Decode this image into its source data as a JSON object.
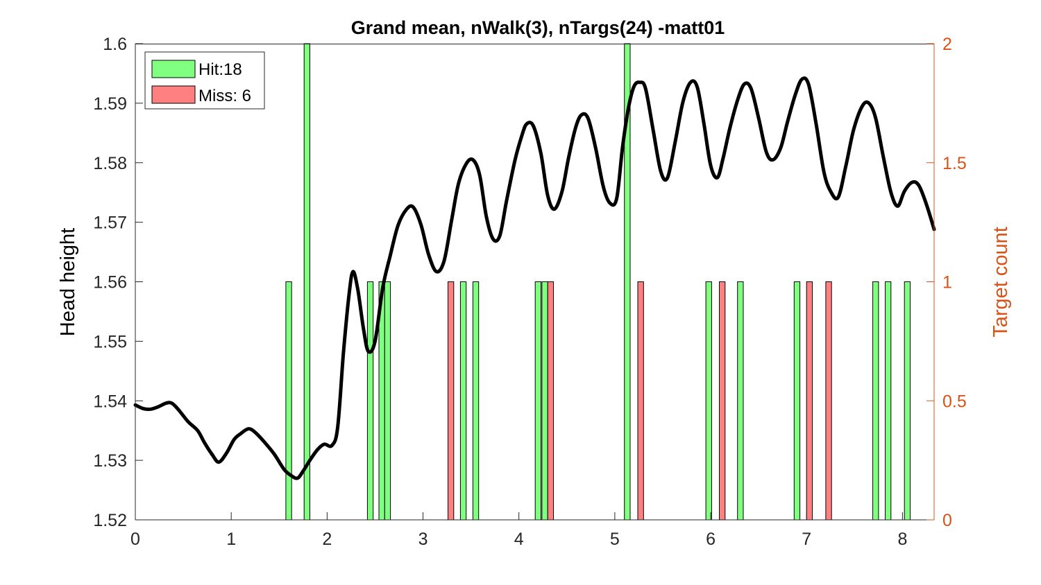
{
  "colors": {
    "hit": "#80ff80",
    "miss": "#ff8080",
    "line": "#000000",
    "right_axis": "#d95319",
    "axis": "#262626"
  },
  "chart_data": {
    "type": "line+bar",
    "title": "Grand mean, nWalk(3), nTargs(24) -matt01",
    "ylabel": "Head height",
    "ylabel_right": "Target count",
    "xlim": [
      0,
      8.33
    ],
    "ylim": [
      1.52,
      1.6
    ],
    "ylim_right": [
      0,
      2
    ],
    "x_ticks": [
      "0",
      "1",
      "2",
      "3",
      "4",
      "5",
      "6",
      "7",
      "8"
    ],
    "y_ticks": [
      "1.52",
      "1.53",
      "1.54",
      "1.55",
      "1.56",
      "1.57",
      "1.58",
      "1.59",
      "1.6"
    ],
    "y_ticks_right": [
      "0",
      "0.5",
      "1",
      "1.5",
      "2"
    ],
    "grid": false,
    "legend_position": "top-left",
    "legend": [
      {
        "label": "Hit:18",
        "color": "#80ff80"
      },
      {
        "label": "Miss: 6",
        "color": "#ff8080"
      }
    ],
    "bar_width": 0.06,
    "hit_bars": {
      "x": [
        1.6,
        1.79,
        2.45,
        2.57,
        2.63,
        3.42,
        3.55,
        4.2,
        4.27,
        5.13,
        5.98,
        6.31,
        6.9,
        7.72,
        7.85,
        8.05
      ],
      "count": [
        1,
        2,
        1,
        1,
        1,
        1,
        1,
        1,
        1,
        2,
        1,
        1,
        1,
        1,
        1,
        1
      ]
    },
    "miss_bars": {
      "x": [
        3.29,
        4.33,
        5.27,
        6.12,
        7.03,
        7.23
      ],
      "count": [
        1,
        1,
        1,
        1,
        1,
        1
      ]
    },
    "line": {
      "name": "Head height",
      "points": [
        [
          0.0,
          1.5393
        ],
        [
          0.08,
          1.5387
        ],
        [
          0.16,
          1.5386
        ],
        [
          0.24,
          1.539
        ],
        [
          0.32,
          1.5396
        ],
        [
          0.38,
          1.5396
        ],
        [
          0.45,
          1.5385
        ],
        [
          0.55,
          1.5365
        ],
        [
          0.65,
          1.535
        ],
        [
          0.72,
          1.533
        ],
        [
          0.8,
          1.531
        ],
        [
          0.87,
          1.5297
        ],
        [
          0.95,
          1.5312
        ],
        [
          1.03,
          1.5335
        ],
        [
          1.1,
          1.5345
        ],
        [
          1.18,
          1.5353
        ],
        [
          1.25,
          1.5347
        ],
        [
          1.35,
          1.533
        ],
        [
          1.45,
          1.531
        ],
        [
          1.55,
          1.5285
        ],
        [
          1.62,
          1.5275
        ],
        [
          1.69,
          1.527
        ],
        [
          1.75,
          1.5282
        ],
        [
          1.82,
          1.53
        ],
        [
          1.9,
          1.5318
        ],
        [
          1.97,
          1.5327
        ],
        [
          2.05,
          1.5325
        ],
        [
          2.11,
          1.5355
        ],
        [
          2.17,
          1.548
        ],
        [
          2.23,
          1.558
        ],
        [
          2.27,
          1.5617
        ],
        [
          2.32,
          1.5587
        ],
        [
          2.38,
          1.552
        ],
        [
          2.43,
          1.5483
        ],
        [
          2.5,
          1.55
        ],
        [
          2.58,
          1.559
        ],
        [
          2.66,
          1.5645
        ],
        [
          2.74,
          1.5695
        ],
        [
          2.83,
          1.5722
        ],
        [
          2.9,
          1.5725
        ],
        [
          2.98,
          1.5695
        ],
        [
          3.06,
          1.5645
        ],
        [
          3.14,
          1.5617
        ],
        [
          3.22,
          1.5635
        ],
        [
          3.3,
          1.5705
        ],
        [
          3.37,
          1.5765
        ],
        [
          3.45,
          1.5798
        ],
        [
          3.52,
          1.5805
        ],
        [
          3.59,
          1.578
        ],
        [
          3.66,
          1.571
        ],
        [
          3.73,
          1.5672
        ],
        [
          3.8,
          1.5677
        ],
        [
          3.87,
          1.5735
        ],
        [
          3.96,
          1.5805
        ],
        [
          4.03,
          1.5845
        ],
        [
          4.08,
          1.5865
        ],
        [
          4.15,
          1.5862
        ],
        [
          4.23,
          1.5815
        ],
        [
          4.3,
          1.5745
        ],
        [
          4.37,
          1.5722
        ],
        [
          4.45,
          1.5752
        ],
        [
          4.52,
          1.581
        ],
        [
          4.59,
          1.5858
        ],
        [
          4.65,
          1.588
        ],
        [
          4.72,
          1.5875
        ],
        [
          4.8,
          1.5825
        ],
        [
          4.88,
          1.576
        ],
        [
          4.95,
          1.5732
        ],
        [
          5.02,
          1.574
        ],
        [
          5.08,
          1.5825
        ],
        [
          5.14,
          1.589
        ],
        [
          5.2,
          1.5928
        ],
        [
          5.26,
          1.5935
        ],
        [
          5.32,
          1.5925
        ],
        [
          5.4,
          1.5855
        ],
        [
          5.48,
          1.5785
        ],
        [
          5.55,
          1.5775
        ],
        [
          5.63,
          1.5835
        ],
        [
          5.71,
          1.5902
        ],
        [
          5.79,
          1.5935
        ],
        [
          5.86,
          1.5927
        ],
        [
          5.93,
          1.5865
        ],
        [
          6.0,
          1.5795
        ],
        [
          6.07,
          1.5775
        ],
        [
          6.13,
          1.5808
        ],
        [
          6.2,
          1.5858
        ],
        [
          6.28,
          1.5905
        ],
        [
          6.35,
          1.5932
        ],
        [
          6.42,
          1.5925
        ],
        [
          6.5,
          1.5875
        ],
        [
          6.58,
          1.5818
        ],
        [
          6.65,
          1.5805
        ],
        [
          6.73,
          1.5825
        ],
        [
          6.8,
          1.5868
        ],
        [
          6.88,
          1.5913
        ],
        [
          6.95,
          1.594
        ],
        [
          7.02,
          1.5932
        ],
        [
          7.1,
          1.5865
        ],
        [
          7.18,
          1.5785
        ],
        [
          7.25,
          1.5752
        ],
        [
          7.33,
          1.5742
        ],
        [
          7.41,
          1.5795
        ],
        [
          7.49,
          1.5855
        ],
        [
          7.58,
          1.5895
        ],
        [
          7.65,
          1.59
        ],
        [
          7.72,
          1.5875
        ],
        [
          7.8,
          1.581
        ],
        [
          7.88,
          1.575
        ],
        [
          7.95,
          1.5727
        ],
        [
          8.02,
          1.5752
        ],
        [
          8.1,
          1.5767
        ],
        [
          8.17,
          1.5762
        ],
        [
          8.25,
          1.573
        ],
        [
          8.33,
          1.5688
        ]
      ]
    }
  }
}
